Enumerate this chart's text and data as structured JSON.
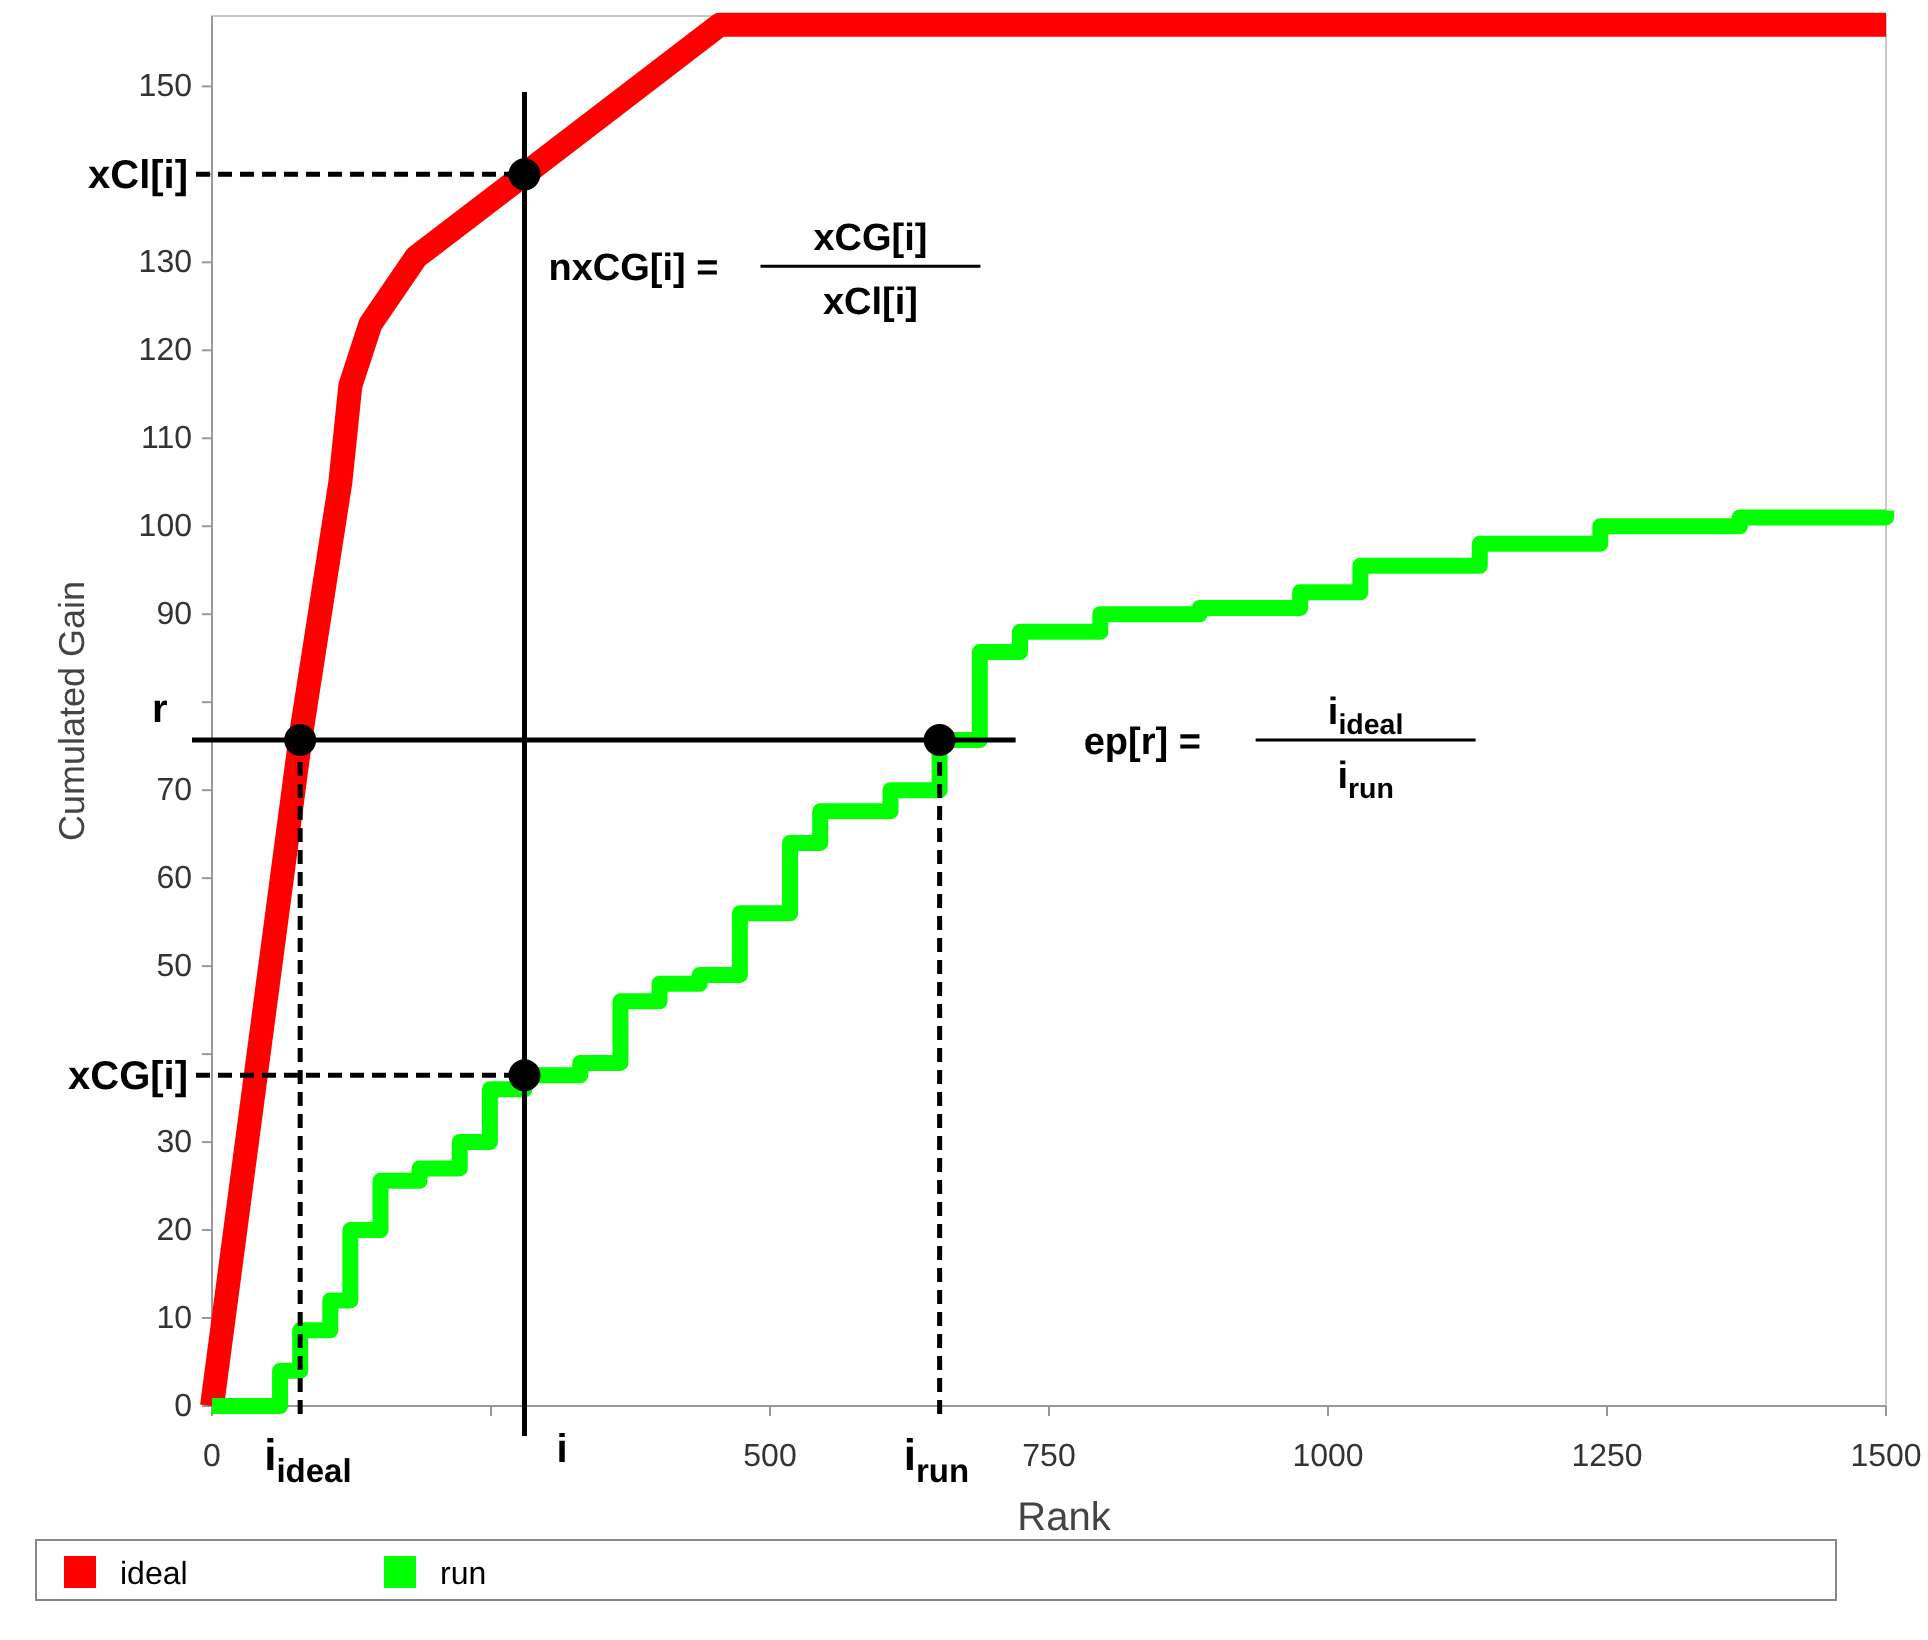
{
  "chart_data": {
    "type": "line",
    "xlabel": "Rank",
    "ylabel": "Cumulated Gain",
    "xlim": [
      0,
      1500
    ],
    "ylim": [
      0,
      158
    ],
    "xticks": [
      0,
      {
        "value": 250,
        "label": null
      },
      500,
      750,
      1000,
      1250,
      1500
    ],
    "yticks": [
      0,
      10,
      20,
      30,
      {
        "value": 40,
        "label": null
      },
      50,
      60,
      70,
      {
        "value": 80,
        "label": null
      },
      90,
      100,
      110,
      120,
      130,
      {
        "value": 140,
        "label": null
      },
      150
    ],
    "series": [
      {
        "name": "ideal",
        "color": "#ff0000",
        "x": [
          0,
          79,
          115,
          124,
          142,
          183,
          280,
          455,
          1500
        ],
        "values": [
          0,
          75.7,
          105,
          116,
          123,
          130.6,
          140,
          157,
          157
        ]
      },
      {
        "name": "run",
        "color": "#00ff00",
        "type": "step",
        "x": [
          0,
          61,
          79,
          106,
          124,
          151,
          186,
          222,
          249,
          280,
          330,
          366,
          401,
          437,
          473,
          518,
          545,
          608,
          652,
          688,
          724,
          796,
          885,
          975,
          1029,
          1136,
          1244,
          1369,
          1500
        ],
        "values": [
          0,
          4,
          8.6,
          12,
          20,
          25.6,
          27,
          30,
          36,
          37.6,
          39,
          46,
          48,
          49,
          56,
          64,
          67.6,
          70,
          75.7,
          85.7,
          88,
          90,
          90.7,
          92.5,
          95.5,
          98,
          100,
          101,
          101.8
        ]
      },
      {
        "type": "scatter",
        "color": "#000000",
        "marker": "circle",
        "x": [
          79,
          652,
          280,
          280
        ],
        "values": [
          75.7,
          75.7,
          140,
          37.6
        ]
      }
    ],
    "ref_lines": [
      {
        "axis": "x",
        "value": 280,
        "label": "i",
        "color": "#000000",
        "line_style": "solid"
      },
      {
        "axis": "y",
        "value": 75.7,
        "label": "r",
        "color": "#000000",
        "line_style": "solid"
      }
    ],
    "annotations": [
      {
        "text": "xCl[i]",
        "x": 280,
        "y": 140
      },
      {
        "text": "xCG[i]",
        "x": 280,
        "y": 37.6
      },
      {
        "text": "i$_{ideal}$",
        "x": 79,
        "y": 75.7
      },
      {
        "text": "i$_{run}$",
        "x": 652,
        "y": 75.7
      },
      "nxCG[i] =",
      "xCG[i]",
      "xCl[i]",
      "ep[r] =",
      "i$_{ideal}$",
      "i$_{run}$"
    ],
    "legend": "bottom",
    "grid": false
  }
}
